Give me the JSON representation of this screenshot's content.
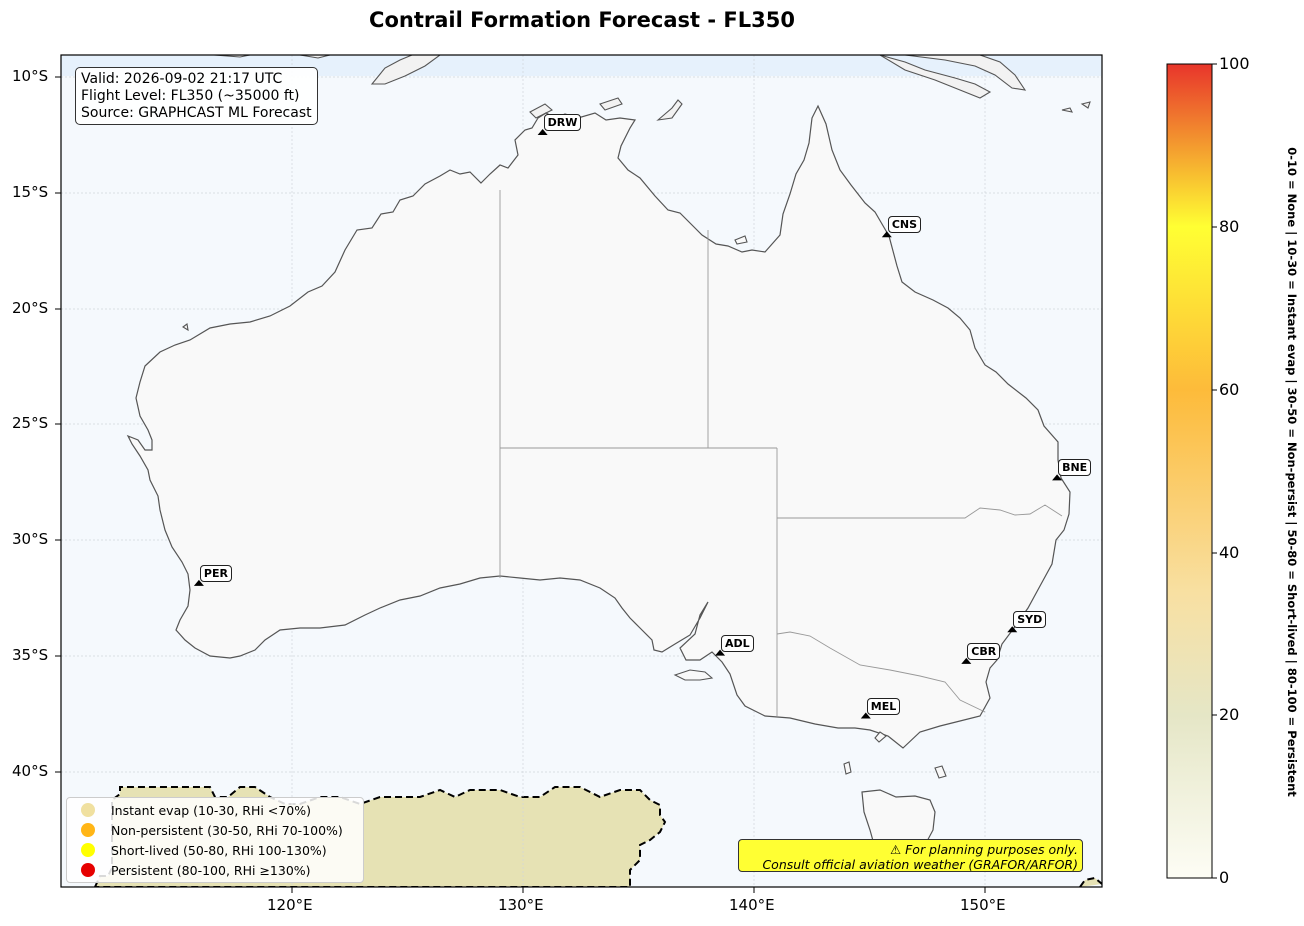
{
  "title": "Contrail Formation Forecast - FL350",
  "info": {
    "valid": "Valid: 2026-09-02 21:17 UTC",
    "flight_level": "Flight Level: FL350 (~35000 ft)",
    "source": "Source: GRAPHCAST ML Forecast"
  },
  "axes": {
    "lat_ticks": [
      "10°S",
      "15°S",
      "20°S",
      "25°S",
      "30°S",
      "35°S",
      "40°S"
    ],
    "lon_ticks": [
      "120°E",
      "130°E",
      "140°E",
      "150°E"
    ]
  },
  "stations": [
    {
      "code": "DRW",
      "lon": 130.85,
      "lat": -12.46
    },
    {
      "code": "CNS",
      "lon": 145.75,
      "lat": -16.88
    },
    {
      "code": "BNE",
      "lon": 153.12,
      "lat": -27.38
    },
    {
      "code": "PER",
      "lon": 115.97,
      "lat": -31.94
    },
    {
      "code": "ADL",
      "lon": 138.53,
      "lat": -34.95
    },
    {
      "code": "SYD",
      "lon": 151.18,
      "lat": -33.94
    },
    {
      "code": "CBR",
      "lon": 149.19,
      "lat": -35.31
    },
    {
      "code": "MEL",
      "lon": 144.84,
      "lat": -37.67
    }
  ],
  "legend": [
    {
      "label": "Instant evap (10-30, RHi <70%)",
      "color": "#f0e0a0"
    },
    {
      "label": "Non-persistent (30-50, RHi 70-100%)",
      "color": "#ffb516"
    },
    {
      "label": "Short-lived (50-80, RHi 100-130%)",
      "color": "#ffff00"
    },
    {
      "label": "Persistent (80-100, RHi ≥130%)",
      "color": "#e60000"
    }
  ],
  "disclaimer": {
    "line1": "⚠ For planning purposes only.",
    "line2": "Consult official aviation weather (GRAFOR/ARFOR)"
  },
  "colorbar": {
    "ticks": [
      "0",
      "20",
      "40",
      "60",
      "80",
      "100"
    ],
    "caption": "0-10 = None  |  10-30 = Instant evap  |  30-50 = Non-persist  |  50-80 = Short-lived  |  80-100 = Persistent",
    "colors": [
      "#fdfdf5",
      "#e8e8c4",
      "#f5e0a0",
      "#fdc84a",
      "#ffff33",
      "#e8352b"
    ]
  },
  "field": {
    "forecast_region": "southern ocean band",
    "region_value": "10-30",
    "region_color": "#e6e2b4"
  },
  "colors": {
    "ocean": "#f5f9fd",
    "land": "#f9f9f9",
    "coast": "#555555"
  }
}
